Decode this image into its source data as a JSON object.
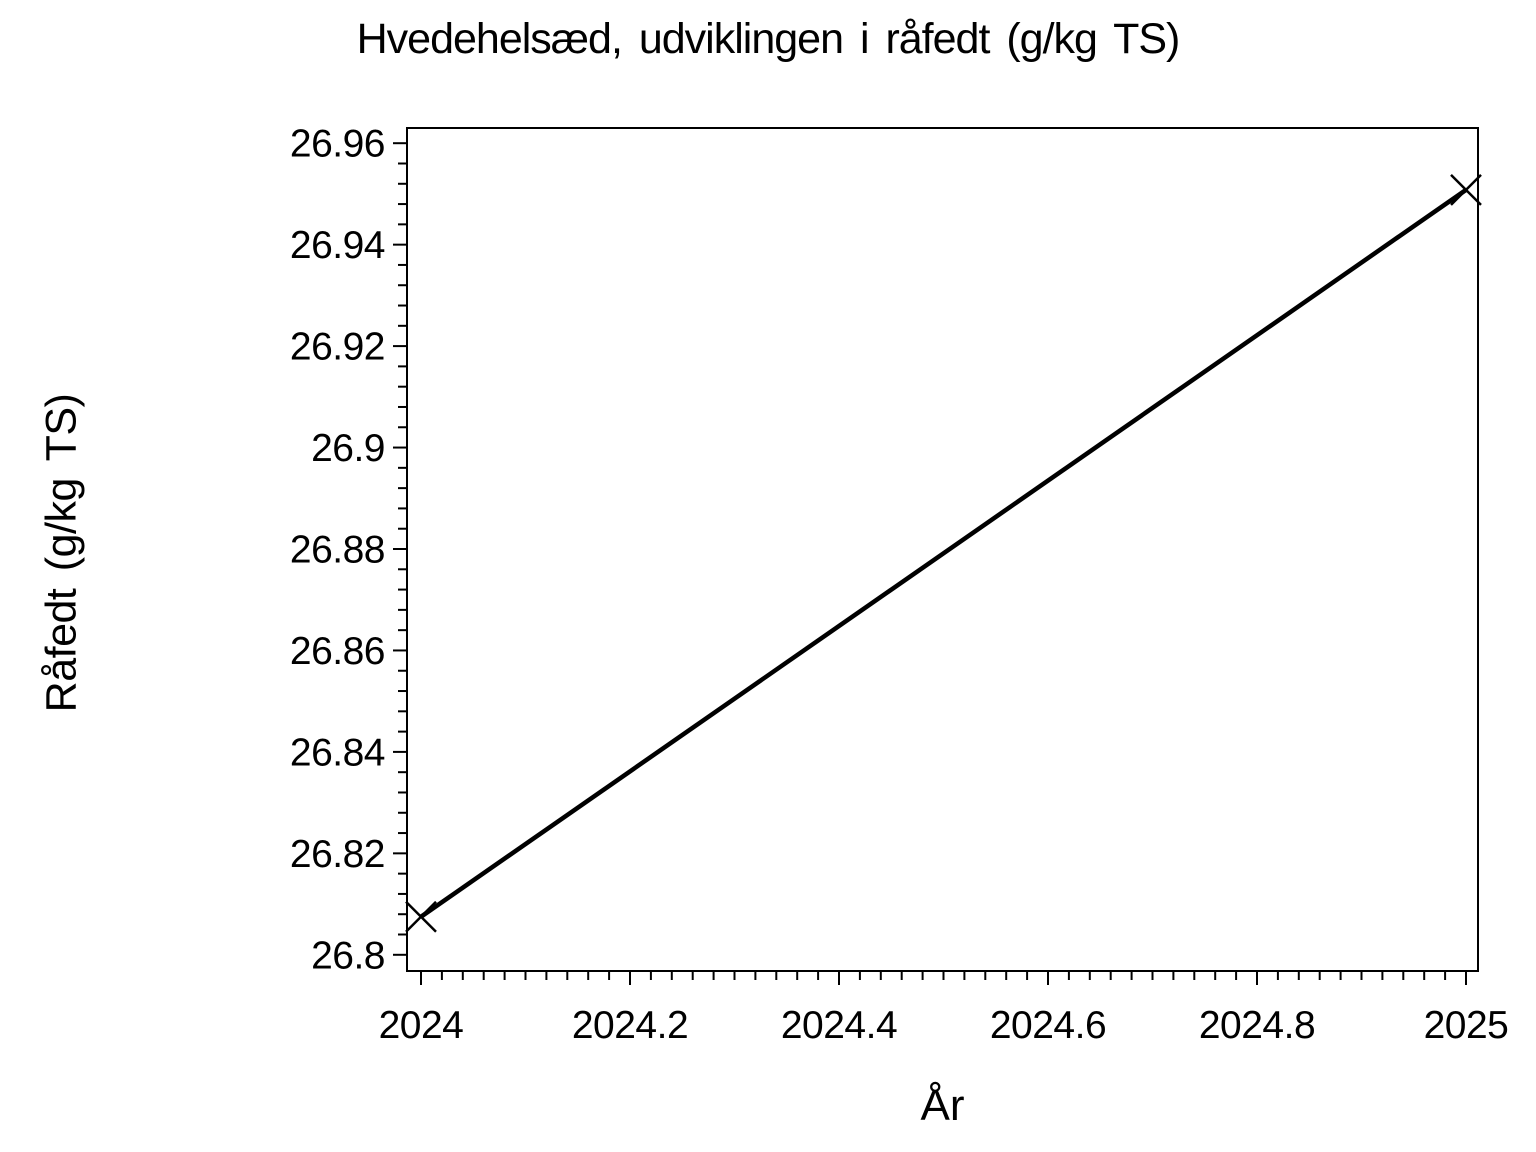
{
  "page": {
    "background_color": "#ffffff",
    "foreground_color": "#000000"
  },
  "chart_data": {
    "type": "line",
    "title": "Hvedehelsæd, udviklingen i råfedt (g/kg TS)",
    "xlabel": "År",
    "ylabel": "Råfedt (g/kg TS)",
    "x": [
      2024,
      2025
    ],
    "y": [
      26.8075,
      26.9508
    ],
    "marker": "x",
    "line_color": "#000000",
    "grid": false,
    "legend": null,
    "xlim": [
      2024,
      2025
    ],
    "ylim": [
      26.8,
      26.96
    ],
    "x_major_ticks": [
      2024,
      2024.2,
      2024.4,
      2024.6,
      2024.8,
      2025
    ],
    "x_tick_labels": [
      "2024",
      "2024.2",
      "2024.4",
      "2024.6",
      "2024.8",
      "2025"
    ],
    "x_minor_divisions": 10,
    "y_major_ticks": [
      26.8,
      26.82,
      26.84,
      26.86,
      26.88,
      26.9,
      26.92,
      26.94,
      26.96
    ],
    "y_tick_labels": [
      "26.8",
      "26.82",
      "26.84",
      "26.86",
      "26.88",
      "26.9",
      "26.92",
      "26.94",
      "26.96"
    ],
    "y_minor_divisions": 5
  }
}
